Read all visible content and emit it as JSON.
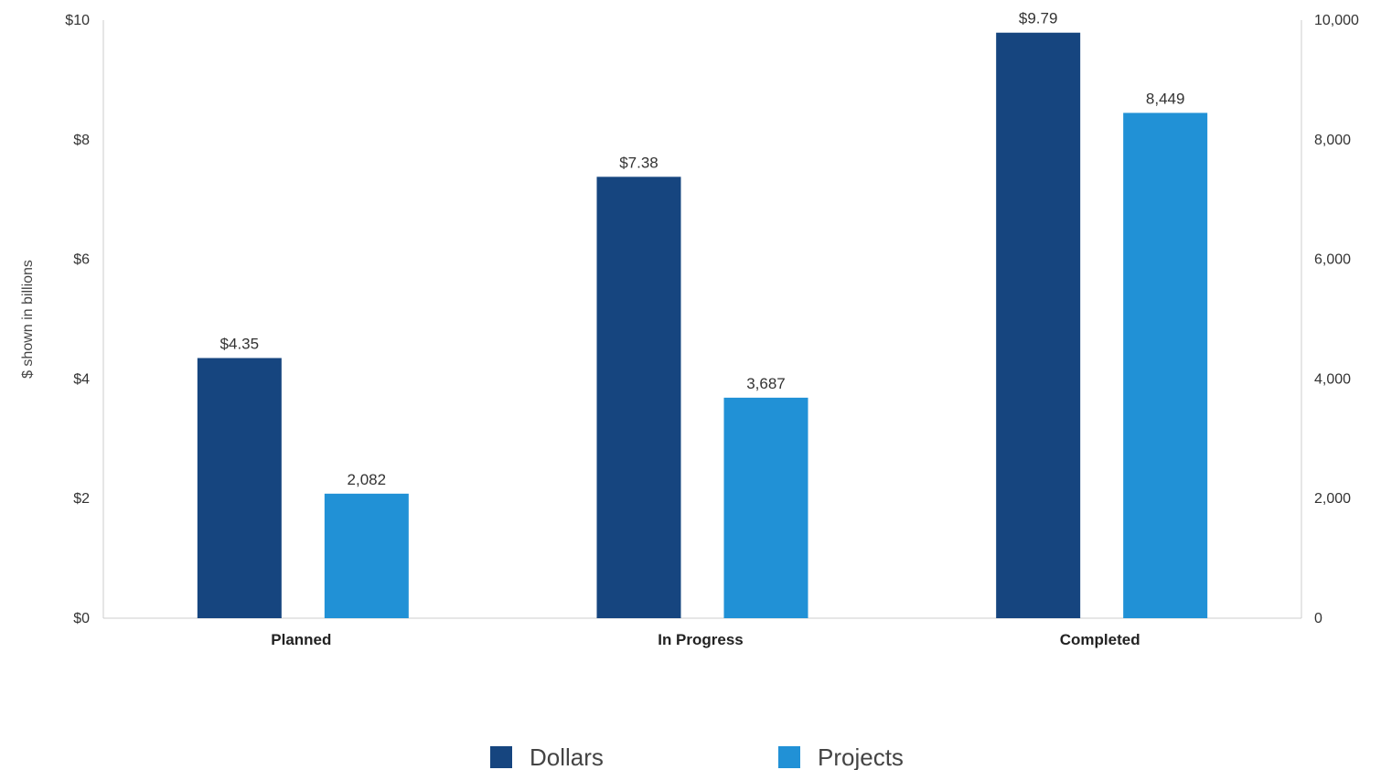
{
  "chart_data": {
    "type": "bar",
    "categories": [
      "Planned",
      "In Progress",
      "Completed"
    ],
    "series": [
      {
        "name": "Dollars",
        "axis": "left",
        "color": "#16457f",
        "values": [
          4.35,
          7.38,
          9.79
        ],
        "labels": [
          "$4.35",
          "$7.38",
          "$9.79"
        ]
      },
      {
        "name": "Projects",
        "axis": "right",
        "color": "#2191d6",
        "values": [
          2082,
          3687,
          8449
        ],
        "labels": [
          "2,082",
          "3,687",
          "8,449"
        ]
      }
    ],
    "ylabel": "$ shown in billions",
    "ylim": [
      0,
      10
    ],
    "yticks": [
      "$0",
      "$2",
      "$4",
      "$6",
      "$8",
      "$10"
    ],
    "y2lim": [
      0,
      10000
    ],
    "y2ticks": [
      "0",
      "2,000",
      "4,000",
      "6,000",
      "8,000",
      "10,000"
    ],
    "legend": {
      "placement": "bottom-center",
      "entries": [
        "Dollars",
        "Projects"
      ]
    },
    "grid": false
  }
}
